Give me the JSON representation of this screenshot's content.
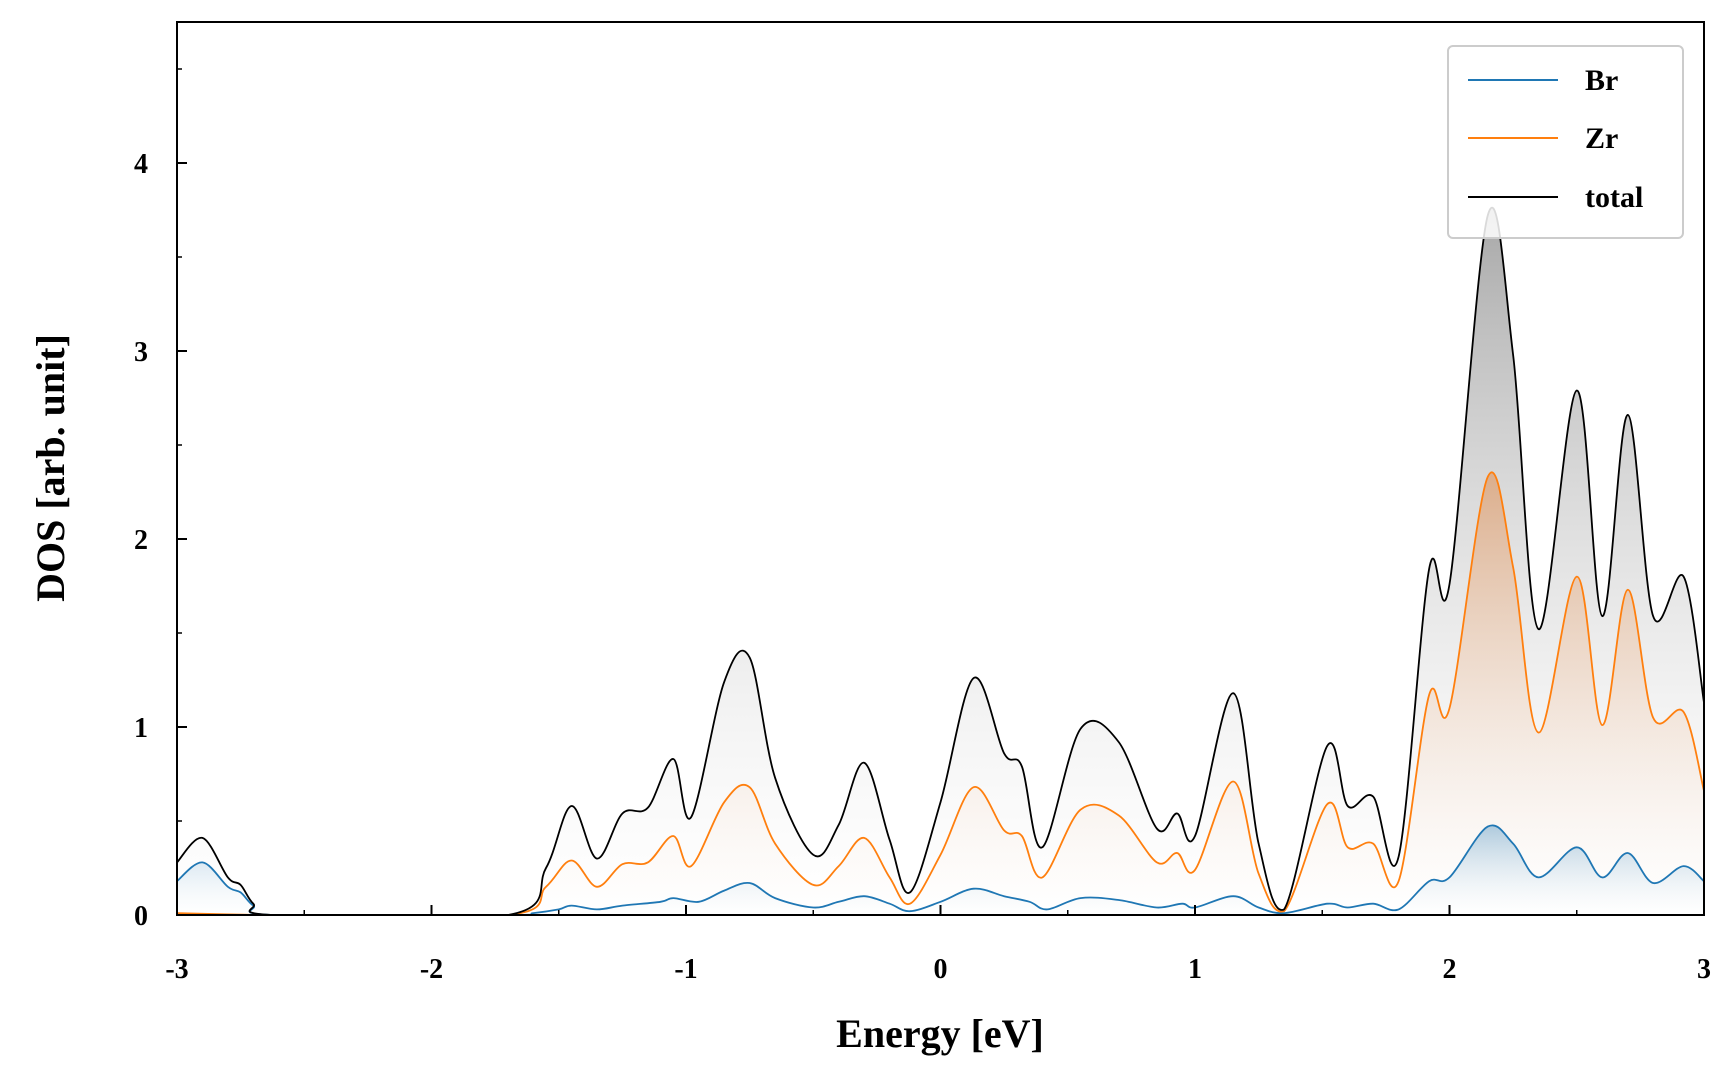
{
  "chart_data": {
    "type": "area",
    "xlabel": "Energy [eV]",
    "ylabel": "DOS [arb. unit]",
    "xlim": [
      -3,
      3
    ],
    "ylim": [
      0,
      4.75
    ],
    "x_ticks": [
      "-3",
      "-2",
      "-1",
      "0",
      "1",
      "2",
      "3"
    ],
    "y_ticks": [
      "0",
      "1",
      "2",
      "3",
      "4"
    ],
    "grid": false,
    "legend_position": "top-right",
    "series": [
      {
        "name": "Br",
        "color": "#1f77b4",
        "points": [
          [
            -3.0,
            0.18
          ],
          [
            -2.9,
            0.28
          ],
          [
            -2.8,
            0.15
          ],
          [
            -2.75,
            0.12
          ],
          [
            -2.7,
            0.05
          ],
          [
            -2.62,
            0.0
          ],
          [
            -1.7,
            0.0
          ],
          [
            -1.6,
            0.01
          ],
          [
            -1.5,
            0.03
          ],
          [
            -1.45,
            0.05
          ],
          [
            -1.35,
            0.03
          ],
          [
            -1.25,
            0.05
          ],
          [
            -1.1,
            0.07
          ],
          [
            -1.05,
            0.09
          ],
          [
            -0.95,
            0.07
          ],
          [
            -0.85,
            0.13
          ],
          [
            -0.75,
            0.17
          ],
          [
            -0.65,
            0.09
          ],
          [
            -0.5,
            0.04
          ],
          [
            -0.4,
            0.07
          ],
          [
            -0.3,
            0.1
          ],
          [
            -0.2,
            0.06
          ],
          [
            -0.12,
            0.02
          ],
          [
            0.0,
            0.07
          ],
          [
            0.13,
            0.14
          ],
          [
            0.25,
            0.1
          ],
          [
            0.35,
            0.07
          ],
          [
            0.42,
            0.03
          ],
          [
            0.55,
            0.09
          ],
          [
            0.7,
            0.08
          ],
          [
            0.85,
            0.04
          ],
          [
            0.95,
            0.06
          ],
          [
            1.0,
            0.04
          ],
          [
            1.15,
            0.1
          ],
          [
            1.25,
            0.04
          ],
          [
            1.35,
            0.01
          ],
          [
            1.52,
            0.06
          ],
          [
            1.6,
            0.04
          ],
          [
            1.7,
            0.06
          ],
          [
            1.8,
            0.03
          ],
          [
            1.92,
            0.18
          ],
          [
            2.0,
            0.2
          ],
          [
            2.15,
            0.47
          ],
          [
            2.25,
            0.38
          ],
          [
            2.35,
            0.2
          ],
          [
            2.5,
            0.36
          ],
          [
            2.6,
            0.2
          ],
          [
            2.7,
            0.33
          ],
          [
            2.8,
            0.17
          ],
          [
            2.92,
            0.26
          ],
          [
            3.0,
            0.18
          ]
        ]
      },
      {
        "name": "Zr",
        "color": "#ff7f0e",
        "points": [
          [
            -3.0,
            0.01
          ],
          [
            -2.62,
            0.0
          ],
          [
            -1.7,
            0.0
          ],
          [
            -1.55,
            0.15
          ],
          [
            -1.45,
            0.29
          ],
          [
            -1.35,
            0.15
          ],
          [
            -1.25,
            0.27
          ],
          [
            -1.15,
            0.28
          ],
          [
            -1.05,
            0.42
          ],
          [
            -0.98,
            0.26
          ],
          [
            -0.85,
            0.6
          ],
          [
            -0.75,
            0.68
          ],
          [
            -0.65,
            0.38
          ],
          [
            -0.5,
            0.16
          ],
          [
            -0.4,
            0.26
          ],
          [
            -0.3,
            0.41
          ],
          [
            -0.2,
            0.2
          ],
          [
            -0.12,
            0.06
          ],
          [
            0.0,
            0.32
          ],
          [
            0.13,
            0.68
          ],
          [
            0.25,
            0.45
          ],
          [
            0.32,
            0.42
          ],
          [
            0.4,
            0.2
          ],
          [
            0.55,
            0.56
          ],
          [
            0.7,
            0.53
          ],
          [
            0.85,
            0.28
          ],
          [
            0.93,
            0.33
          ],
          [
            1.0,
            0.24
          ],
          [
            1.15,
            0.71
          ],
          [
            1.25,
            0.22
          ],
          [
            1.35,
            0.02
          ],
          [
            1.52,
            0.59
          ],
          [
            1.6,
            0.36
          ],
          [
            1.7,
            0.38
          ],
          [
            1.8,
            0.18
          ],
          [
            1.92,
            1.17
          ],
          [
            2.0,
            1.1
          ],
          [
            2.15,
            2.33
          ],
          [
            2.25,
            1.85
          ],
          [
            2.35,
            0.97
          ],
          [
            2.5,
            1.8
          ],
          [
            2.6,
            1.01
          ],
          [
            2.7,
            1.73
          ],
          [
            2.8,
            1.05
          ],
          [
            2.92,
            1.08
          ],
          [
            3.0,
            0.66
          ]
        ]
      },
      {
        "name": "total",
        "color": "#000000",
        "points": [
          [
            -3.0,
            0.28
          ],
          [
            -2.9,
            0.41
          ],
          [
            -2.8,
            0.2
          ],
          [
            -2.75,
            0.16
          ],
          [
            -2.7,
            0.06
          ],
          [
            -2.62,
            0.0
          ],
          [
            -1.7,
            0.0
          ],
          [
            -1.55,
            0.25
          ],
          [
            -1.45,
            0.58
          ],
          [
            -1.35,
            0.3
          ],
          [
            -1.25,
            0.54
          ],
          [
            -1.15,
            0.57
          ],
          [
            -1.05,
            0.83
          ],
          [
            -0.98,
            0.52
          ],
          [
            -0.85,
            1.24
          ],
          [
            -0.75,
            1.37
          ],
          [
            -0.65,
            0.73
          ],
          [
            -0.5,
            0.32
          ],
          [
            -0.4,
            0.48
          ],
          [
            -0.3,
            0.81
          ],
          [
            -0.2,
            0.4
          ],
          [
            -0.12,
            0.12
          ],
          [
            0.0,
            0.6
          ],
          [
            0.13,
            1.26
          ],
          [
            0.25,
            0.86
          ],
          [
            0.32,
            0.79
          ],
          [
            0.4,
            0.36
          ],
          [
            0.55,
            0.99
          ],
          [
            0.7,
            0.92
          ],
          [
            0.85,
            0.46
          ],
          [
            0.93,
            0.54
          ],
          [
            1.0,
            0.42
          ],
          [
            1.15,
            1.18
          ],
          [
            1.25,
            0.38
          ],
          [
            1.35,
            0.03
          ],
          [
            1.52,
            0.9
          ],
          [
            1.6,
            0.58
          ],
          [
            1.7,
            0.63
          ],
          [
            1.8,
            0.31
          ],
          [
            1.92,
            1.84
          ],
          [
            2.0,
            1.76
          ],
          [
            2.15,
            3.72
          ],
          [
            2.25,
            2.98
          ],
          [
            2.35,
            1.52
          ],
          [
            2.5,
            2.79
          ],
          [
            2.6,
            1.59
          ],
          [
            2.7,
            2.66
          ],
          [
            2.8,
            1.59
          ],
          [
            2.92,
            1.8
          ],
          [
            3.0,
            1.13
          ]
        ]
      }
    ]
  }
}
